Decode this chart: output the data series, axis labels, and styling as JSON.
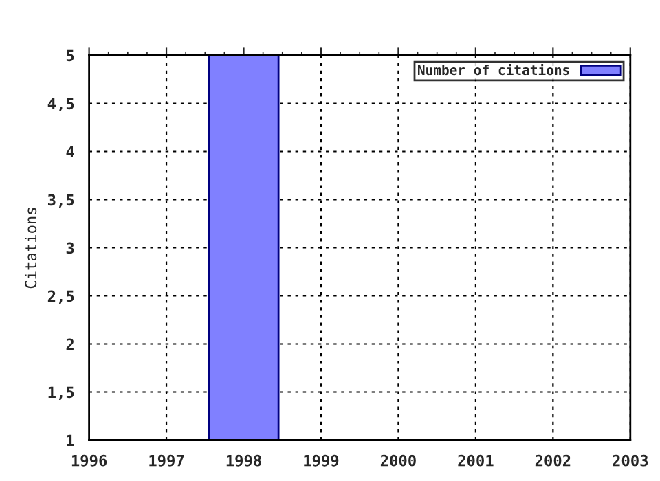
{
  "chart_data": {
    "type": "bar",
    "ylabel": "Citations",
    "x": [
      1998
    ],
    "series": [
      {
        "name": "Number of citations",
        "color": "#8080ff",
        "values": [
          5
        ]
      }
    ],
    "xlim": [
      1996,
      2003
    ],
    "xticks": [
      1996,
      1997,
      1998,
      1999,
      2000,
      2001,
      2002,
      2003
    ],
    "ylim": [
      1,
      5
    ],
    "yticks": [
      1,
      {
        "value": 1.5,
        "label": "1,5"
      },
      2,
      {
        "value": 2.5,
        "label": "2,5"
      },
      3,
      {
        "value": 3.5,
        "label": "3,5"
      },
      4,
      {
        "value": 4.5,
        "label": "4,5"
      },
      5
    ],
    "grid": true,
    "legend": "top right"
  }
}
